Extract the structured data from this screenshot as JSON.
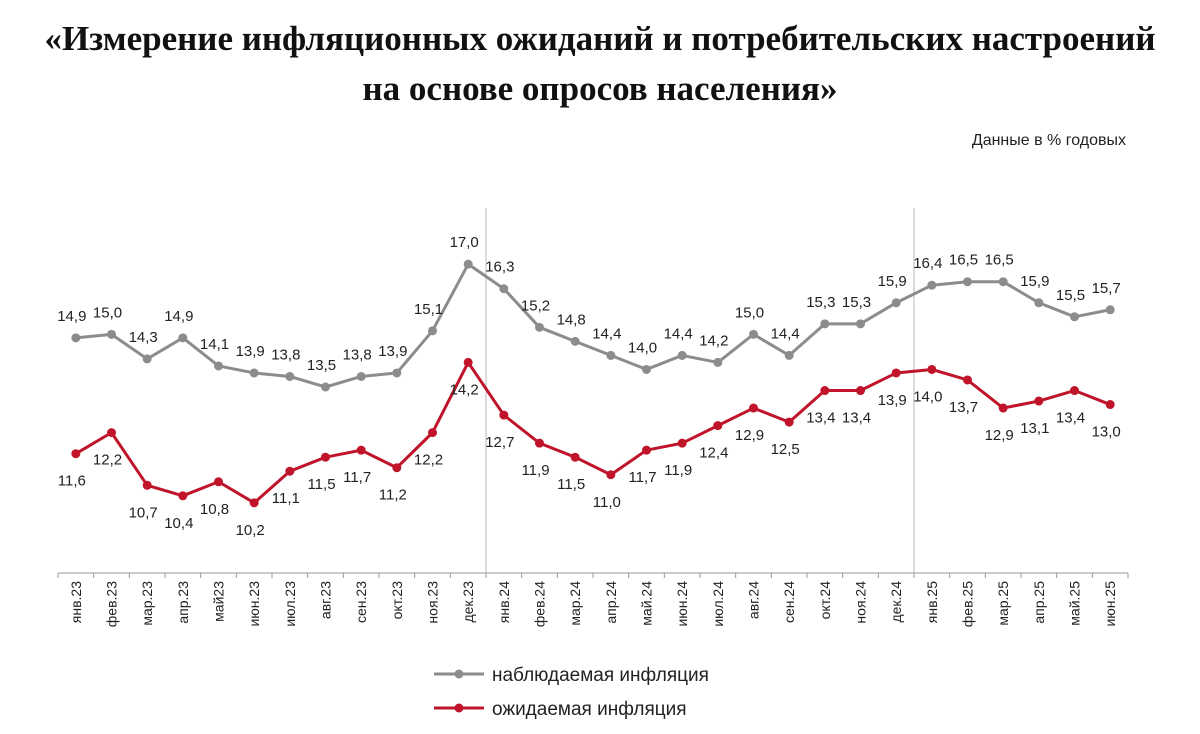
{
  "title_line1": "«Измерение инфляционных ожиданий и потребительских настроений",
  "title_line2": "на основе опросов населения»",
  "subtitle": "Данные в % годовых",
  "chart_data": {
    "type": "line",
    "categories": [
      "янв.23",
      "фев.23",
      "мар.23",
      "апр.23",
      "май23",
      "июн.23",
      "июл.23",
      "авг.23",
      "сен.23",
      "окт.23",
      "ноя.23",
      "дек.23",
      "янв.24",
      "фев.24",
      "мар.24",
      "апр.24",
      "май.24",
      "июн.24",
      "июл.24",
      "авг.24",
      "сен.24",
      "окт.24",
      "ноя.24",
      "дек.24",
      "янв.25",
      "фев.25",
      "мар.25",
      "апр.25",
      "май.25",
      "июн.25"
    ],
    "series": [
      {
        "name": "наблюдаемая  инфляция",
        "color": "#8c8c8c",
        "values": [
          14.9,
          15.0,
          14.3,
          14.9,
          14.1,
          13.9,
          13.8,
          13.5,
          13.8,
          13.9,
          15.1,
          17.0,
          16.3,
          15.2,
          14.8,
          14.4,
          14.0,
          14.4,
          14.2,
          15.0,
          14.4,
          15.3,
          15.3,
          15.9,
          16.4,
          16.5,
          16.5,
          15.9,
          15.5,
          15.7
        ],
        "labels": [
          "14,9",
          "15,0",
          "14,3",
          "14,9",
          "14,1",
          "13,9",
          "13,8",
          "13,5",
          "13,8",
          "13,9",
          "15,1",
          "17,0",
          "16,3",
          "15,2",
          "14,8",
          "14,4",
          "14,0",
          "14,4",
          "14,2",
          "15,0",
          "14,4",
          "15,3",
          "15,3",
          "15,9",
          "16,4",
          "16,5",
          "16,5",
          "15,9",
          "15,5",
          "15,7"
        ]
      },
      {
        "name": "ожидаемая  инфляция",
        "color": "#c0142a",
        "values": [
          11.6,
          12.2,
          10.7,
          10.4,
          10.8,
          10.2,
          11.1,
          11.5,
          11.7,
          11.2,
          12.2,
          14.2,
          12.7,
          11.9,
          11.5,
          11.0,
          11.7,
          11.9,
          12.4,
          12.9,
          12.5,
          13.4,
          13.4,
          13.9,
          14.0,
          13.7,
          12.9,
          13.1,
          13.4,
          13.0
        ],
        "labels": [
          "11,6",
          "12,2",
          "10,7",
          "10,4",
          "10,8",
          "10,2",
          "11,1",
          "11,5",
          "11,7",
          "11,2",
          "12,2",
          "14,2",
          "12,7",
          "11,9",
          "11,5",
          "11,0",
          "11,7",
          "11,9",
          "12,4",
          "12,9",
          "12,5",
          "13,4",
          "13,4",
          "13,9",
          "14,0",
          "13,7",
          "12,9",
          "13,1",
          "13,4",
          "13,0"
        ]
      }
    ],
    "year_separators_after": [
      "дек.23",
      "дек.24"
    ],
    "grid": false,
    "legend_position": "bottom-center"
  }
}
